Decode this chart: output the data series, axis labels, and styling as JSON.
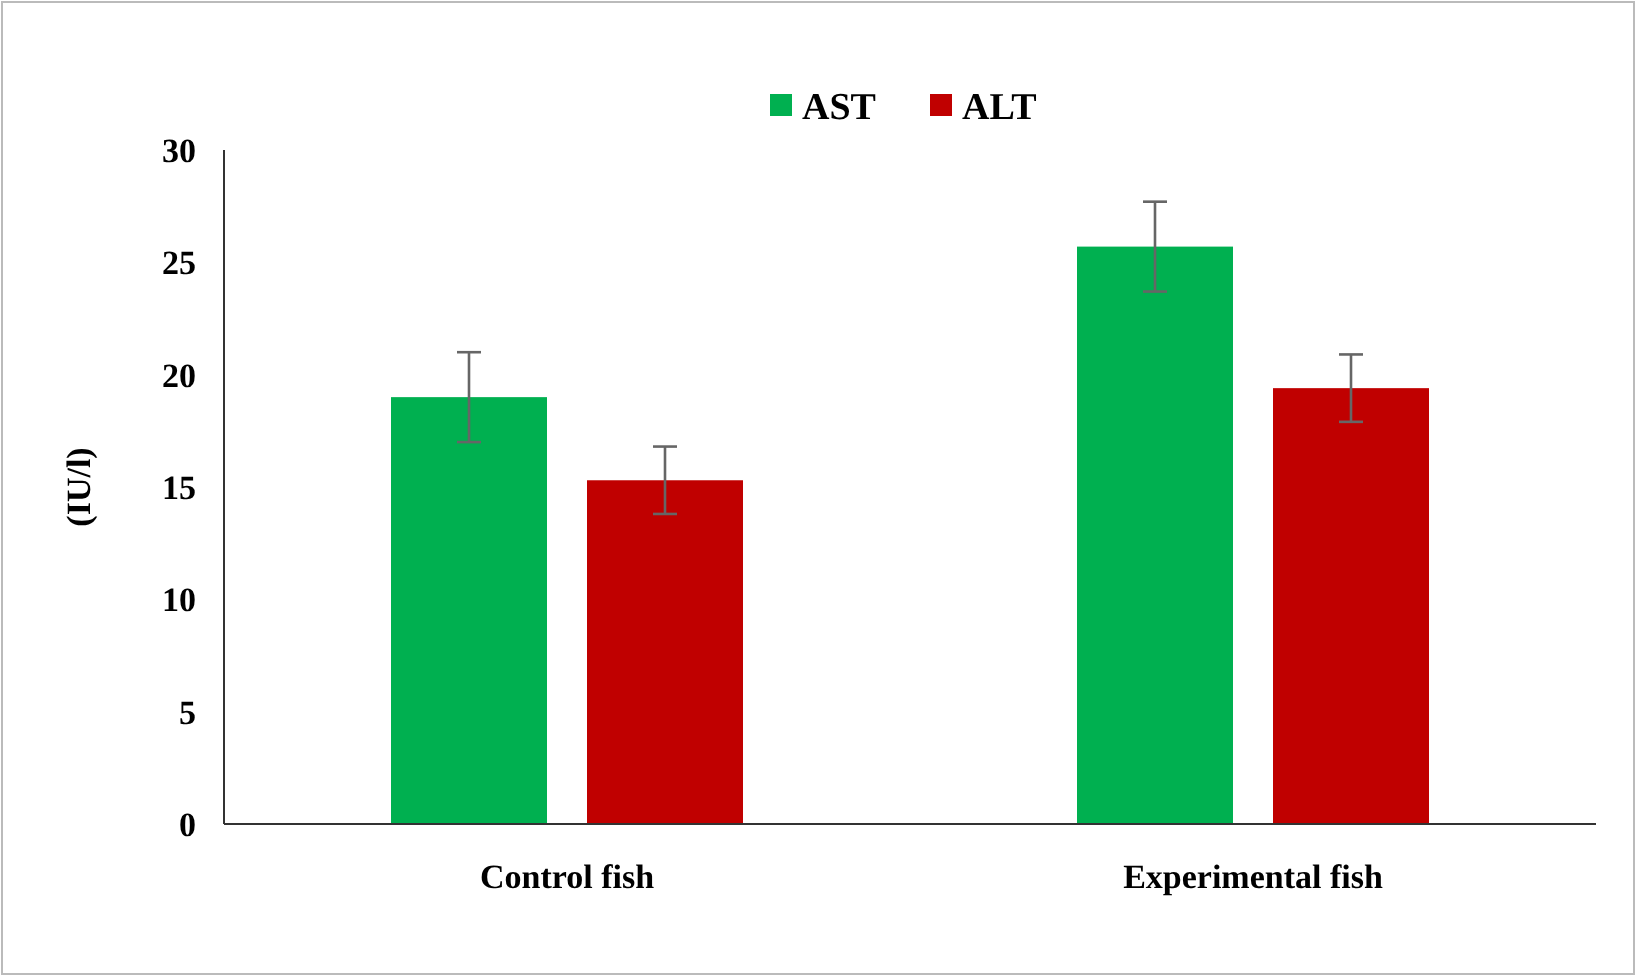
{
  "chart_data": {
    "type": "bar",
    "ylabel": "(IU/l)",
    "categories": [
      "Control fish",
      "Experimental fish"
    ],
    "series": [
      {
        "name": "AST",
        "color": "#00b050",
        "values": [
          19.0,
          25.7
        ],
        "errors": [
          2,
          2
        ]
      },
      {
        "name": "ALT",
        "color": "#c00000",
        "values": [
          15.3,
          19.4
        ],
        "errors": [
          1.5,
          1.5
        ]
      }
    ],
    "ylim": [
      0,
      30
    ],
    "yticks": [
      0,
      5,
      10,
      15,
      20,
      25,
      30
    ],
    "grid": false,
    "legend": "top"
  }
}
